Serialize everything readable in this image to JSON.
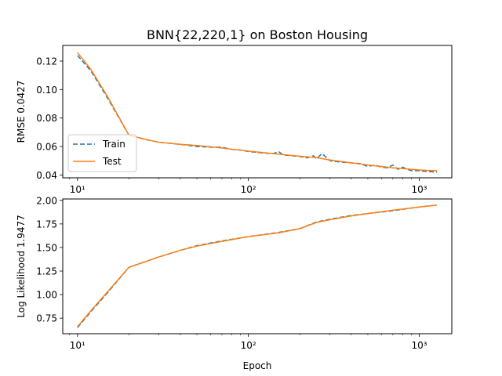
{
  "figure": {
    "title": "BNN{22,220,1} on Boston Housing"
  },
  "chart_data": [
    {
      "type": "line",
      "title": "BNN{22,220,1} on Boston Housing",
      "xlabel": "",
      "ylabel": "RMSE 0.0427",
      "xscale": "log",
      "xlim": [
        8.2,
        1550
      ],
      "ylim": [
        0.038,
        0.131
      ],
      "xticks": [
        10,
        100,
        1000
      ],
      "xtick_labels": [
        "10¹",
        "10²",
        "10³"
      ],
      "yticks": [
        0.04,
        0.06,
        0.08,
        0.1,
        0.12
      ],
      "ytick_labels": [
        "0.04",
        "0.06",
        "0.08",
        "0.10",
        "0.12"
      ],
      "grid": false,
      "legend": "center-left",
      "series": [
        {
          "name": "Train",
          "color": "#1f77b4",
          "style": "dashed",
          "x": [
            10,
            12,
            15,
            20,
            25,
            30,
            40,
            50,
            60,
            70,
            80,
            90,
            100,
            120,
            140,
            150,
            160,
            180,
            200,
            220,
            240,
            250,
            270,
            300,
            350,
            400,
            450,
            500,
            550,
            600,
            650,
            700,
            750,
            800,
            850,
            900,
            1000,
            1100,
            1270
          ],
          "y": [
            0.124,
            0.113,
            0.094,
            0.068,
            0.065,
            0.063,
            0.0615,
            0.06,
            0.0595,
            0.0595,
            0.058,
            0.0575,
            0.0565,
            0.0555,
            0.055,
            0.0565,
            0.054,
            0.0535,
            0.053,
            0.052,
            0.0535,
            0.0515,
            0.055,
            0.05,
            0.049,
            0.0485,
            0.048,
            0.046,
            0.047,
            0.0455,
            0.045,
            0.047,
            0.044,
            0.0455,
            0.044,
            0.043,
            0.043,
            0.0425,
            0.042
          ]
        },
        {
          "name": "Test",
          "color": "#ff7f0e",
          "style": "solid",
          "x": [
            10,
            12,
            15,
            20,
            25,
            30,
            40,
            50,
            60,
            70,
            80,
            90,
            100,
            120,
            140,
            160,
            180,
            200,
            250,
            300,
            350,
            400,
            500,
            600,
            700,
            800,
            900,
            1000,
            1100,
            1270
          ],
          "y": [
            0.126,
            0.114,
            0.095,
            0.068,
            0.065,
            0.063,
            0.0615,
            0.0607,
            0.0598,
            0.059,
            0.058,
            0.0575,
            0.0568,
            0.0558,
            0.055,
            0.0543,
            0.0537,
            0.0532,
            0.0522,
            0.0505,
            0.0495,
            0.0485,
            0.047,
            0.046,
            0.045,
            0.0445,
            0.044,
            0.0435,
            0.0432,
            0.043
          ]
        }
      ]
    },
    {
      "type": "line",
      "title": "",
      "xlabel": "Epoch",
      "ylabel": "Log Likelihood 1.9477",
      "xscale": "log",
      "xlim": [
        8.2,
        1550
      ],
      "ylim": [
        0.585,
        2.015
      ],
      "xticks": [
        10,
        100,
        1000
      ],
      "xtick_labels": [
        "10¹",
        "10²",
        "10³"
      ],
      "yticks": [
        0.75,
        1.0,
        1.25,
        1.5,
        1.75,
        2.0
      ],
      "ytick_labels": [
        "0.75",
        "1.00",
        "1.25",
        "1.50",
        "1.75",
        "2.00"
      ],
      "grid": false,
      "legend": "none",
      "series": [
        {
          "name": "Train",
          "color": "#1f77b4",
          "style": "dashed",
          "x": [
            10,
            12,
            15,
            20,
            25,
            30,
            40,
            50,
            70,
            100,
            150,
            200,
            250,
            300,
            400,
            500,
            700,
            1000,
            1270
          ],
          "y": [
            0.65,
            0.82,
            1.02,
            1.29,
            1.35,
            1.4,
            1.47,
            1.52,
            1.57,
            1.615,
            1.66,
            1.7,
            1.77,
            1.8,
            1.84,
            1.86,
            1.89,
            1.93,
            1.95
          ]
        },
        {
          "name": "Test",
          "color": "#ff7f0e",
          "style": "solid",
          "x": [
            10,
            12,
            15,
            20,
            25,
            30,
            40,
            50,
            70,
            100,
            150,
            200,
            250,
            300,
            400,
            500,
            700,
            1000,
            1270
          ],
          "y": [
            0.66,
            0.83,
            1.03,
            1.29,
            1.35,
            1.4,
            1.47,
            1.515,
            1.565,
            1.615,
            1.655,
            1.7,
            1.765,
            1.795,
            1.835,
            1.86,
            1.895,
            1.93,
            1.95
          ]
        }
      ]
    }
  ]
}
